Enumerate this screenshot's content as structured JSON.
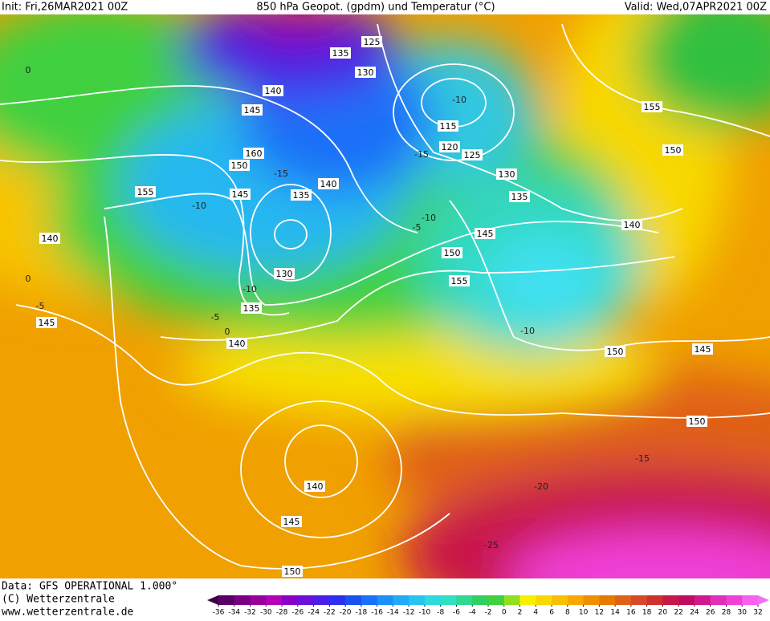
{
  "header": {
    "init": "Init: Fri,26MAR2021 00Z",
    "title": "850 hPa Geopot. (gpdm) und Temperatur (°C)",
    "valid": "Valid: Wed,07APR2021 00Z"
  },
  "footer": {
    "data": "Data: GFS OPERATIONAL 1.000°",
    "copyright": "(C) Wetterzentrale",
    "url": "www.wetterzentrale.de"
  },
  "colorbar": {
    "ticks": [
      -36,
      -34,
      -32,
      -30,
      -28,
      -26,
      -24,
      -22,
      -20,
      -18,
      -16,
      -14,
      -12,
      -10,
      -8,
      -6,
      -4,
      -2,
      0,
      2,
      4,
      6,
      8,
      10,
      12,
      14,
      16,
      18,
      20,
      22,
      24,
      26,
      28,
      30,
      32
    ],
    "colors": [
      "#3c0046",
      "#5a0064",
      "#7a0082",
      "#9a009e",
      "#b400b8",
      "#8a00c8",
      "#6a10d8",
      "#4a1ee6",
      "#2a30f0",
      "#1a50f0",
      "#1a70f8",
      "#1a90f8",
      "#20aaf8",
      "#28c4f0",
      "#30d8e0",
      "#30e0c0",
      "#30d890",
      "#30d060",
      "#40d040",
      "#90e020",
      "#f8f000",
      "#f8d800",
      "#f8c000",
      "#f8a800",
      "#f09000",
      "#e87800",
      "#e06018",
      "#d84828",
      "#d03030",
      "#c81848",
      "#c00c60",
      "#d01890",
      "#e030b8",
      "#f040d8",
      "#f860f0",
      "#f070f0"
    ]
  },
  "geopotential_labels": [
    125,
    135,
    130,
    140,
    145,
    115,
    120,
    125,
    155,
    150,
    160,
    150,
    130,
    140,
    135,
    145,
    155,
    135,
    140,
    140,
    145,
    150,
    130,
    155,
    135,
    145,
    140,
    150,
    145,
    150,
    140,
    145,
    150
  ],
  "temperature_labels": [
    -10,
    -15,
    -10,
    -15,
    -10,
    -5,
    -10,
    -5,
    0,
    -5,
    0,
    0,
    -10,
    -15,
    -20,
    -25
  ]
}
